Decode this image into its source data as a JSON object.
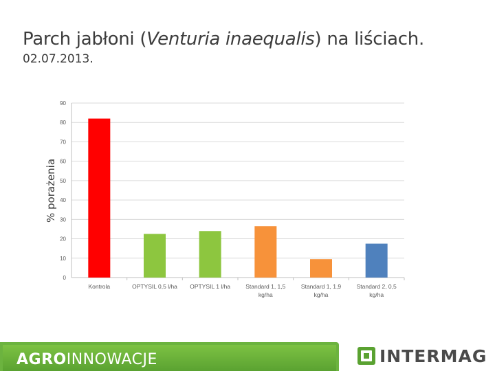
{
  "header": {
    "title_pre": "Parch jabłoni (",
    "title_italic": "Venturia inaequalis",
    "title_post": ") na liściach.",
    "date": "02.07.2013."
  },
  "chart_data": {
    "type": "bar",
    "title": "Parch jabłoni (Venturia inaequalis) na liściach.",
    "ylabel": "% porażenia",
    "xlabel": "",
    "ylim": [
      0,
      90
    ],
    "yticks": [
      0,
      10,
      20,
      30,
      40,
      50,
      60,
      70,
      80,
      90
    ],
    "grid": true,
    "categories": [
      [
        "Kontrola"
      ],
      [
        "OPTYSIL 0,5 l/ha"
      ],
      [
        "OPTYSIL 1 l/ha"
      ],
      [
        "Standard 1,  1,5",
        "kg/ha"
      ],
      [
        "Standard 1,  1,9",
        "kg/ha"
      ],
      [
        "Standard 2,  0,5",
        "kg/ha"
      ]
    ],
    "values": [
      82,
      22.5,
      24,
      26.5,
      9.5,
      17.5
    ],
    "colors": [
      "#ff0000",
      "#8dc63f",
      "#8dc63f",
      "#f7923a",
      "#f7923a",
      "#4f81bd"
    ]
  },
  "footer": {
    "brand_bold": "AGRO",
    "brand_rest": "INNOWACJE",
    "company": "INTERMAG"
  }
}
